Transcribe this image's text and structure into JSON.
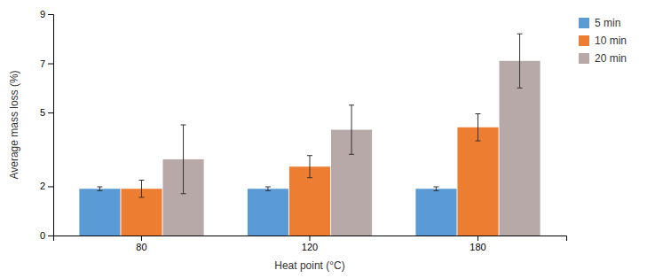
{
  "chart_data": {
    "type": "bar",
    "categories": [
      "80",
      "120",
      "180"
    ],
    "series": [
      {
        "name": "5 min",
        "color": "#5B9BD5",
        "values": [
          1.9,
          1.9,
          1.9
        ],
        "errors": [
          0.08,
          0.08,
          0.08
        ]
      },
      {
        "name": "10 min",
        "color": "#ED7D31",
        "values": [
          1.9,
          2.8,
          4.4
        ],
        "errors": [
          0.35,
          0.45,
          0.55
        ]
      },
      {
        "name": "20 min",
        "color": "#B8A9A9",
        "values": [
          3.1,
          4.3,
          7.1
        ],
        "errors": [
          1.4,
          1.0,
          1.1
        ]
      }
    ],
    "xlabel": "Heat point (°C)",
    "ylabel": "Average mass loss (%)",
    "ylim": [
      0,
      9
    ],
    "yticks": [
      0,
      2,
      5,
      7,
      9
    ],
    "grid": false,
    "legend": "upper right"
  }
}
